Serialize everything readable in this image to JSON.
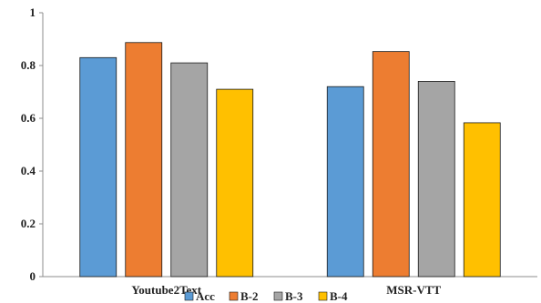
{
  "chart_data": {
    "type": "bar",
    "categories": [
      "Youtube2Text",
      "MSR-VTT"
    ],
    "series": [
      {
        "name": "Acc",
        "color": "#5B9BD5",
        "values": [
          0.83,
          0.72
        ]
      },
      {
        "name": "B-2",
        "color": "#ED7D31",
        "values": [
          0.887,
          0.853
        ]
      },
      {
        "name": "B-3",
        "color": "#A5A5A5",
        "values": [
          0.81,
          0.74
        ]
      },
      {
        "name": "B-4",
        "color": "#FFC000",
        "values": [
          0.71,
          0.583
        ]
      }
    ],
    "ylim": [
      0,
      1
    ],
    "yticks": [
      "0",
      "0.2",
      "0.4",
      "0.6",
      "0.8",
      "1"
    ],
    "grid": false,
    "legend": "bottom"
  }
}
